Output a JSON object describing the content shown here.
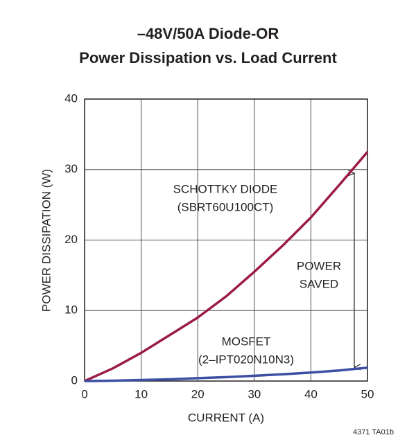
{
  "chart_data": {
    "type": "line",
    "title": [
      "–48V/50A Diode-OR",
      "Power Dissipation vs. Load Current"
    ],
    "x_label": "CURRENT (A)",
    "y_label": "POWER DISSIPATION (W)",
    "x": [
      0,
      5,
      10,
      15,
      20,
      25,
      30,
      35,
      40,
      45,
      50
    ],
    "series": [
      {
        "name": "SCHOTTKY DIODE",
        "color": "#9b1b45",
        "values": [
          0,
          1.8,
          4,
          6.5,
          9,
          12,
          15.5,
          19.2,
          23.2,
          27.8,
          32.5
        ]
      },
      {
        "name": "MOSFET",
        "color": "#3b4fa3",
        "values": [
          0,
          0.05,
          0.15,
          0.25,
          0.4,
          0.55,
          0.75,
          0.95,
          1.2,
          1.5,
          1.9
        ]
      }
    ],
    "annotations": [
      "(SBRT60U100CT)",
      "(2–IPT020N10N3)",
      "POWER",
      "SAVED"
    ],
    "footnote": "4371 TA01b",
    "xlim": [
      0,
      50
    ],
    "xticks": [
      0,
      10,
      20,
      30,
      40,
      50
    ],
    "ylim": [
      0,
      40
    ],
    "yticks": [
      0,
      10,
      20,
      30,
      40
    ],
    "grid": true
  }
}
